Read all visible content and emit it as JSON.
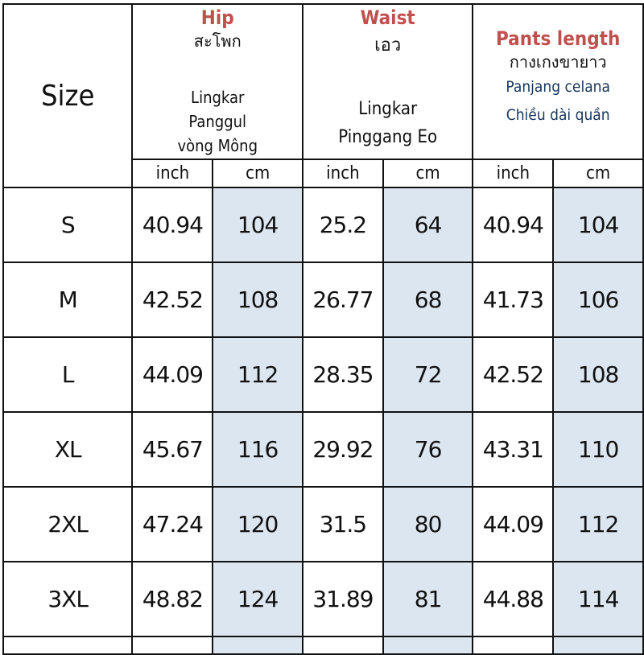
{
  "header": {
    "size_label": "Size",
    "hip": {
      "title": "Hip",
      "thai": "สะโพก",
      "line1": "Lingkar",
      "line2": "Panggul",
      "line3": "vòng Mông"
    },
    "waist": {
      "title": "Waist",
      "thai": "เอว",
      "line1": "Lingkar",
      "line2": "Pinggang  Eo"
    },
    "pants": {
      "title": "Pants length",
      "thai": "กางเกงขายาว",
      "line1": "Panjang celana",
      "line2": "Chiều dài quần"
    },
    "units": [
      "inch",
      "cm",
      "inch",
      "cm",
      "inch",
      "cm"
    ]
  },
  "colors": {
    "title_red": "#c0504d",
    "cm_shade": "#dce6f1"
  },
  "rows": [
    [
      "S",
      "40.94",
      "104",
      "25.2",
      "64",
      "40.94",
      "104"
    ],
    [
      "M",
      "42.52",
      "108",
      "26.77",
      "68",
      "41.73",
      "106"
    ],
    [
      "L",
      "44.09",
      "112",
      "28.35",
      "72",
      "42.52",
      "108"
    ],
    [
      "XL",
      "45.67",
      "116",
      "29.92",
      "76",
      "43.31",
      "110"
    ],
    [
      "2XL",
      "47.24",
      "120",
      "31.5",
      "80",
      "44.09",
      "112"
    ],
    [
      "3XL",
      "48.82",
      "124",
      "31.89",
      "81",
      "44.88",
      "114"
    ]
  ]
}
